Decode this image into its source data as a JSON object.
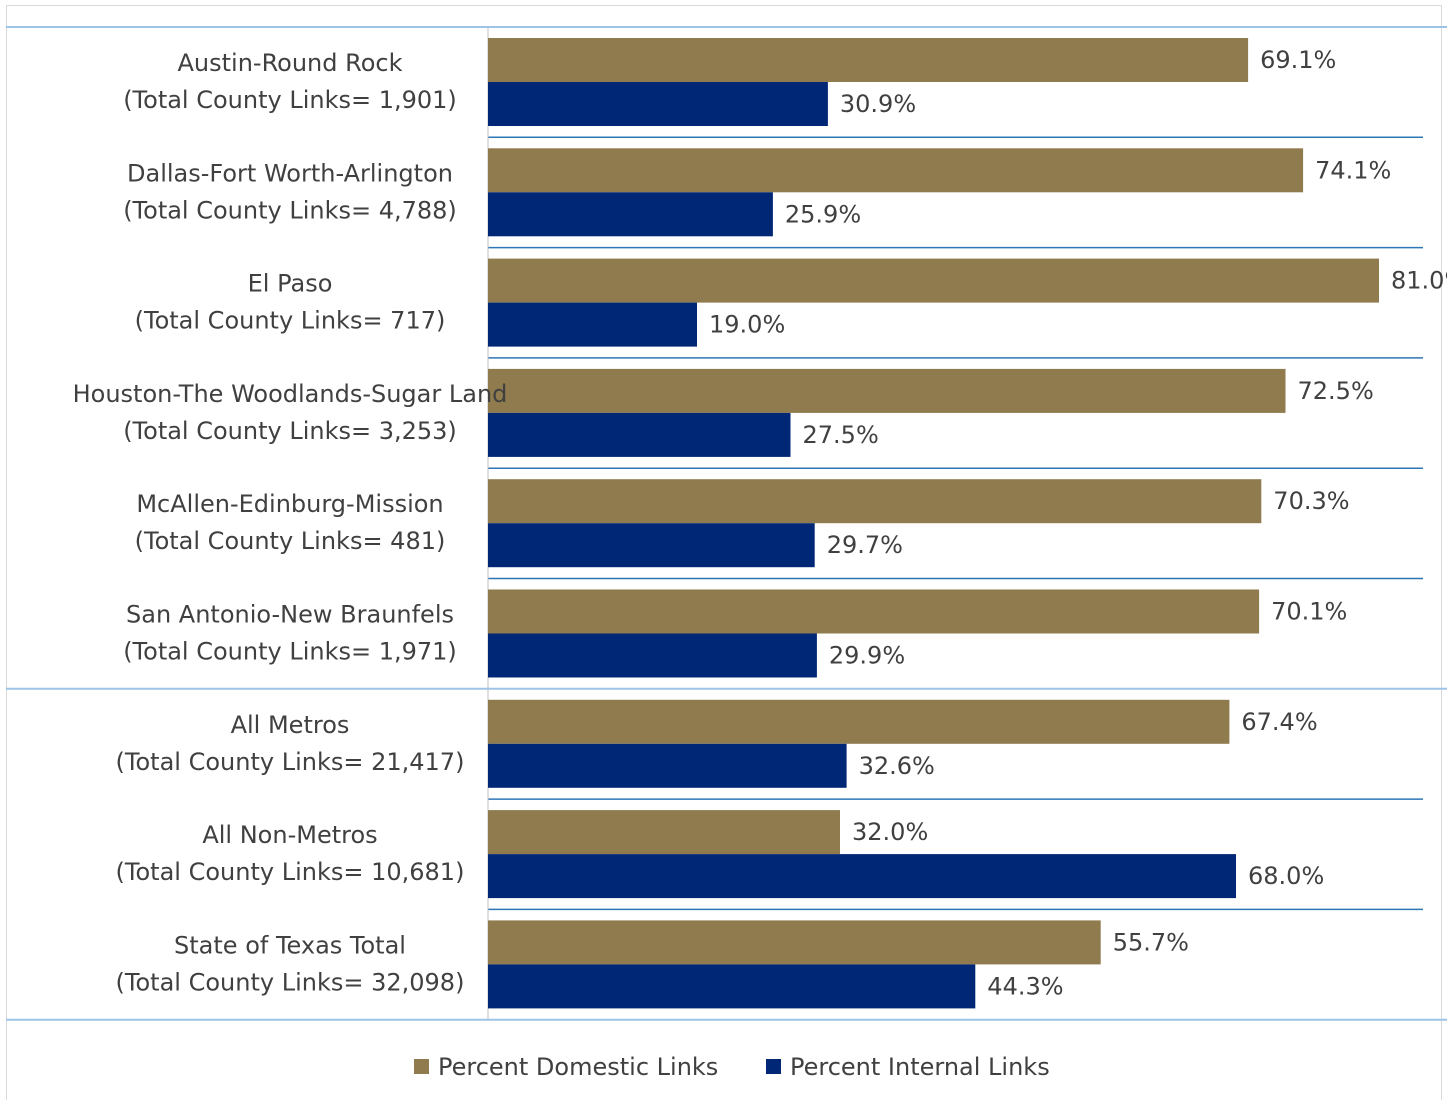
{
  "chart_data": {
    "type": "bar",
    "orientation": "horizontal",
    "title": "",
    "xlabel": "",
    "ylabel": "",
    "xlim": [
      0,
      85
    ],
    "grid": false,
    "legend_position": "bottom",
    "value_suffix": "%",
    "categories": [
      {
        "name": "Austin-Round Rock",
        "links": "(Total County Links= 1,901)"
      },
      {
        "name": "Dallas-Fort Worth-Arlington",
        "links": "(Total County Links= 4,788)"
      },
      {
        "name": "El Paso",
        "links": "(Total County Links= 717)"
      },
      {
        "name": "Houston-The Woodlands-Sugar Land",
        "links": "(Total County Links= 3,253)"
      },
      {
        "name": "McAllen-Edinburg-Mission",
        "links": "(Total County Links= 481)"
      },
      {
        "name": "San Antonio-New Braunfels",
        "links": "(Total County Links= 1,971)"
      },
      {
        "name": "All Metros",
        "links": "(Total County Links= 21,417)"
      },
      {
        "name": "All Non-Metros",
        "links": "(Total County Links= 10,681)"
      },
      {
        "name": "State of Texas Total",
        "links": "(Total County Links= 32,098)"
      }
    ],
    "series": [
      {
        "name": "Percent Domestic Links",
        "color": "#8f7b4e",
        "values": [
          69.1,
          74.1,
          81.0,
          72.5,
          70.3,
          70.1,
          67.4,
          32.0,
          55.7
        ]
      },
      {
        "name": "Percent Internal Links",
        "color": "#002776",
        "values": [
          30.9,
          25.9,
          19.0,
          27.5,
          29.7,
          29.9,
          32.6,
          68.0,
          44.3
        ]
      }
    ],
    "group_separators_after": [
      5,
      8
    ]
  }
}
